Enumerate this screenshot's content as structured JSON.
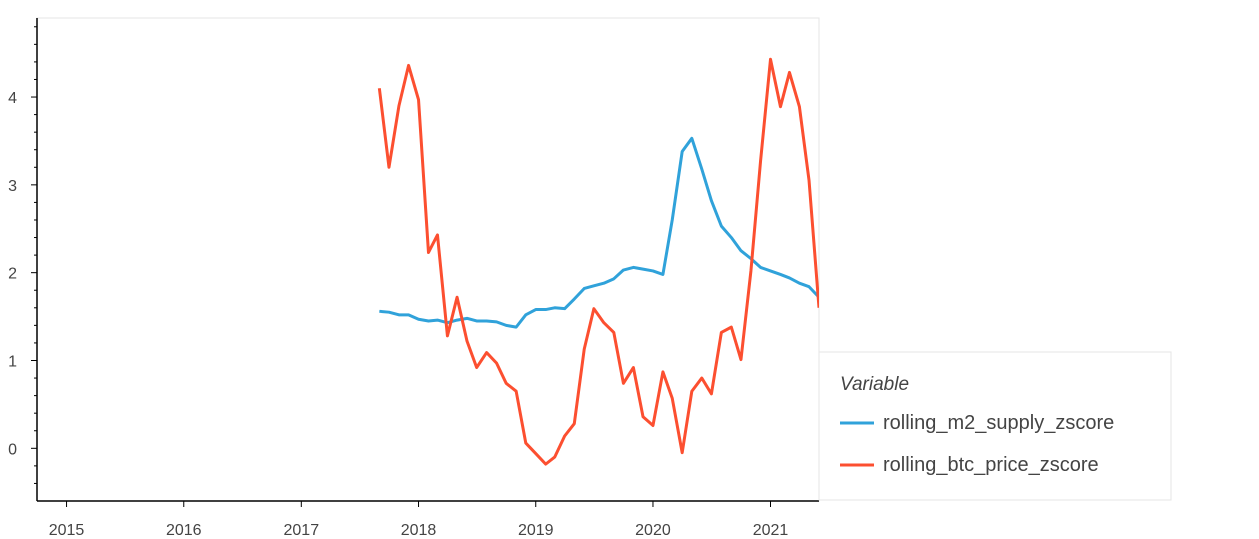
{
  "chart_data": {
    "type": "line",
    "x_axis": {
      "type": "date",
      "range": [
        "2014-10-01",
        "2021-06-01"
      ],
      "tick_labels": [
        "2015",
        "2016",
        "2017",
        "2018",
        "2019",
        "2020",
        "2021"
      ]
    },
    "y_axis": {
      "range": [
        -0.6,
        4.9
      ],
      "tick_labels": [
        "0",
        "1",
        "2",
        "3",
        "4"
      ]
    },
    "grid": false,
    "legend": {
      "title": "Variable",
      "placement": "right"
    },
    "series": [
      {
        "name": "rolling_m2_supply_zscore",
        "color": "#30a2da",
        "points": [
          [
            "2017-09-01",
            1.56
          ],
          [
            "2017-10-01",
            1.55
          ],
          [
            "2017-11-01",
            1.52
          ],
          [
            "2017-12-01",
            1.52
          ],
          [
            "2018-01-01",
            1.47
          ],
          [
            "2018-02-01",
            1.45
          ],
          [
            "2018-03-01",
            1.46
          ],
          [
            "2018-04-01",
            1.43
          ],
          [
            "2018-05-01",
            1.46
          ],
          [
            "2018-06-01",
            1.48
          ],
          [
            "2018-07-01",
            1.45
          ],
          [
            "2018-08-01",
            1.45
          ],
          [
            "2018-09-01",
            1.44
          ],
          [
            "2018-10-01",
            1.4
          ],
          [
            "2018-11-01",
            1.38
          ],
          [
            "2018-12-01",
            1.52
          ],
          [
            "2019-01-01",
            1.58
          ],
          [
            "2019-02-01",
            1.58
          ],
          [
            "2019-03-01",
            1.6
          ],
          [
            "2019-04-01",
            1.59
          ],
          [
            "2019-05-01",
            1.7
          ],
          [
            "2019-06-01",
            1.82
          ],
          [
            "2019-07-01",
            1.85
          ],
          [
            "2019-08-01",
            1.88
          ],
          [
            "2019-09-01",
            1.93
          ],
          [
            "2019-10-01",
            2.03
          ],
          [
            "2019-11-01",
            2.06
          ],
          [
            "2019-12-01",
            2.04
          ],
          [
            "2020-01-01",
            2.02
          ],
          [
            "2020-02-01",
            1.98
          ],
          [
            "2020-03-01",
            2.6
          ],
          [
            "2020-04-01",
            3.38
          ],
          [
            "2020-05-01",
            3.53
          ],
          [
            "2020-06-01",
            3.18
          ],
          [
            "2020-07-01",
            2.82
          ],
          [
            "2020-08-01",
            2.53
          ],
          [
            "2020-09-01",
            2.4
          ],
          [
            "2020-10-01",
            2.25
          ],
          [
            "2020-11-01",
            2.16
          ],
          [
            "2020-12-01",
            2.06
          ],
          [
            "2021-01-01",
            2.02
          ],
          [
            "2021-02-01",
            1.98
          ],
          [
            "2021-03-01",
            1.94
          ],
          [
            "2021-04-01",
            1.88
          ],
          [
            "2021-05-01",
            1.84
          ],
          [
            "2021-06-01",
            1.72
          ]
        ]
      },
      {
        "name": "rolling_btc_price_zscore",
        "color": "#fc4f30",
        "points": [
          [
            "2017-09-01",
            4.1
          ],
          [
            "2017-10-01",
            3.2
          ],
          [
            "2017-11-01",
            3.9
          ],
          [
            "2017-12-01",
            4.36
          ],
          [
            "2018-01-01",
            3.97
          ],
          [
            "2018-02-01",
            2.23
          ],
          [
            "2018-03-01",
            2.43
          ],
          [
            "2018-04-01",
            1.28
          ],
          [
            "2018-05-01",
            1.72
          ],
          [
            "2018-06-01",
            1.22
          ],
          [
            "2018-07-01",
            0.92
          ],
          [
            "2018-08-01",
            1.09
          ],
          [
            "2018-09-01",
            0.97
          ],
          [
            "2018-10-01",
            0.74
          ],
          [
            "2018-11-01",
            0.65
          ],
          [
            "2018-12-01",
            0.06
          ],
          [
            "2019-01-01",
            -0.06
          ],
          [
            "2019-02-01",
            -0.18
          ],
          [
            "2019-03-01",
            -0.1
          ],
          [
            "2019-04-01",
            0.14
          ],
          [
            "2019-05-01",
            0.28
          ],
          [
            "2019-06-01",
            1.13
          ],
          [
            "2019-07-01",
            1.59
          ],
          [
            "2019-08-01",
            1.43
          ],
          [
            "2019-09-01",
            1.32
          ],
          [
            "2019-10-01",
            0.74
          ],
          [
            "2019-11-01",
            0.92
          ],
          [
            "2019-12-01",
            0.36
          ],
          [
            "2020-01-01",
            0.26
          ],
          [
            "2020-02-01",
            0.87
          ],
          [
            "2020-03-01",
            0.57
          ],
          [
            "2020-04-01",
            -0.05
          ],
          [
            "2020-05-01",
            0.65
          ],
          [
            "2020-06-01",
            0.8
          ],
          [
            "2020-07-01",
            0.62
          ],
          [
            "2020-08-01",
            1.32
          ],
          [
            "2020-09-01",
            1.38
          ],
          [
            "2020-10-01",
            1.01
          ],
          [
            "2020-11-01",
            2.02
          ],
          [
            "2020-12-01",
            3.27
          ],
          [
            "2021-01-01",
            4.43
          ],
          [
            "2021-02-01",
            3.89
          ],
          [
            "2021-03-01",
            4.28
          ],
          [
            "2021-04-01",
            3.89
          ],
          [
            "2021-05-01",
            3.05
          ],
          [
            "2021-06-01",
            1.6
          ]
        ]
      }
    ]
  }
}
